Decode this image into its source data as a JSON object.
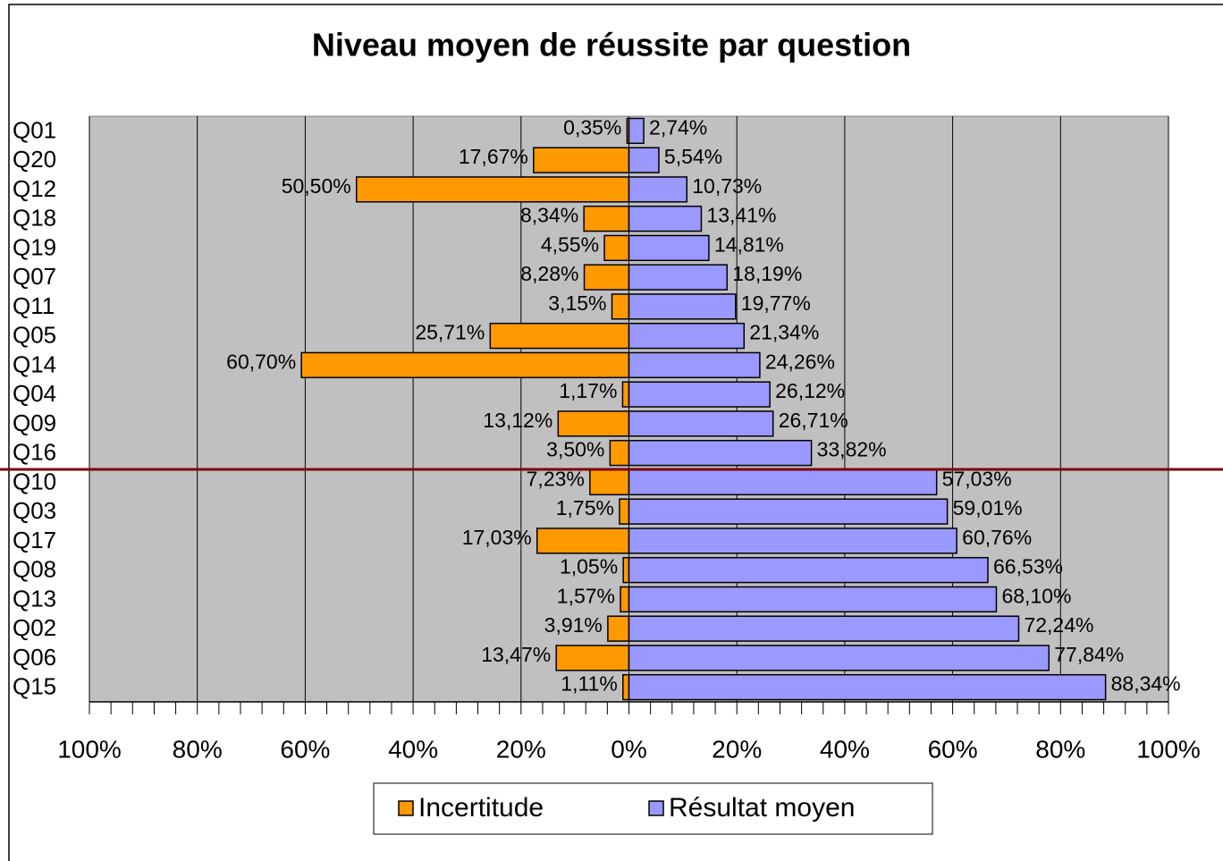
{
  "chart_data": {
    "type": "diverging_bar",
    "title": "Niveau moyen de réussite par question",
    "categories": [
      "Q01",
      "Q20",
      "Q12",
      "Q18",
      "Q19",
      "Q07",
      "Q11",
      "Q05",
      "Q14",
      "Q04",
      "Q09",
      "Q16",
      "Q10",
      "Q03",
      "Q17",
      "Q08",
      "Q13",
      "Q02",
      "Q06",
      "Q15"
    ],
    "series": [
      {
        "name": "Incertitude",
        "color": "#ff9900",
        "values": [
          -0.35,
          -17.67,
          -50.5,
          -8.34,
          -4.55,
          -8.28,
          -3.15,
          -25.71,
          -60.7,
          -1.17,
          -13.12,
          -3.5,
          -7.23,
          -1.75,
          -17.03,
          -1.05,
          -1.57,
          -3.91,
          -13.47,
          -1.11
        ],
        "value_labels": [
          "0,35%",
          "17,67%",
          "50,50%",
          "8,34%",
          "4,55%",
          "8,28%",
          "3,15%",
          "25,71%",
          "60,70%",
          "1,17%",
          "13,12%",
          "3,50%",
          "7,23%",
          "1,75%",
          "17,03%",
          "1,05%",
          "1,57%",
          "3,91%",
          "13,47%",
          "1,11%"
        ]
      },
      {
        "name": "Résultat moyen",
        "color": "#9999ff",
        "values": [
          2.74,
          5.54,
          10.73,
          13.41,
          14.81,
          18.19,
          19.77,
          21.34,
          24.26,
          26.12,
          26.71,
          33.82,
          57.03,
          59.01,
          60.76,
          66.53,
          68.1,
          72.24,
          77.84,
          88.34
        ],
        "value_labels": [
          "2,74%",
          "5,54%",
          "10,73%",
          "13,41%",
          "14,81%",
          "18,19%",
          "19,77%",
          "21,34%",
          "24,26%",
          "26,12%",
          "26,71%",
          "33,82%",
          "57,03%",
          "59,01%",
          "60,76%",
          "66,53%",
          "68,10%",
          "72,24%",
          "77,84%",
          "88,34%"
        ]
      }
    ],
    "xlim": [
      -100,
      100
    ],
    "xticks": [
      {
        "value": -100,
        "label": "100%"
      },
      {
        "value": -80,
        "label": "80%"
      },
      {
        "value": -60,
        "label": "60%"
      },
      {
        "value": -40,
        "label": "40%"
      },
      {
        "value": -20,
        "label": "20%"
      },
      {
        "value": 0,
        "label": "0%"
      },
      {
        "value": 20,
        "label": "20%"
      },
      {
        "value": 40,
        "label": "40%"
      },
      {
        "value": 60,
        "label": "60%"
      },
      {
        "value": 80,
        "label": "80%"
      },
      {
        "value": 100,
        "label": "100%"
      }
    ],
    "grid": true,
    "legend": "bottom"
  }
}
